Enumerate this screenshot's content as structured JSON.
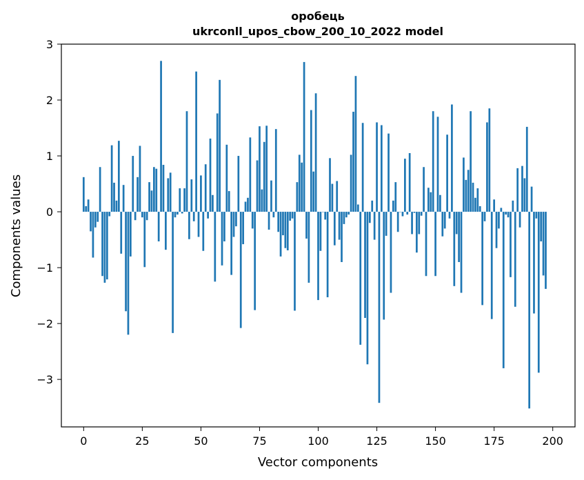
{
  "chart_data": {
    "type": "bar",
    "title_lines": [
      "оробець",
      "ukrconll_upos_cbow_200_10_2022 model"
    ],
    "xlabel": "Vector components",
    "ylabel": "Components values",
    "xlim": [
      -9.5,
      209.5
    ],
    "ylim": [
      -3.85,
      3.0
    ],
    "xticks": [
      0,
      25,
      50,
      75,
      100,
      125,
      150,
      175,
      200
    ],
    "xtick_labels": [
      "0",
      "25",
      "50",
      "75",
      "100",
      "125",
      "150",
      "175",
      "200"
    ],
    "yticks": [
      3,
      2,
      1,
      0,
      -1,
      -2,
      -3
    ],
    "ytick_labels": [
      "3",
      "2",
      "1",
      "0",
      "−1",
      "−2",
      "−3"
    ],
    "bar_color": "#1f77b4",
    "grid": false,
    "values": [
      0.62,
      0.1,
      0.22,
      -0.35,
      -0.82,
      -0.28,
      -0.18,
      0.8,
      -1.15,
      -1.27,
      -1.21,
      -0.08,
      1.19,
      0.52,
      0.2,
      1.27,
      -0.75,
      0.48,
      -1.78,
      -2.2,
      -0.8,
      1.0,
      -0.15,
      0.62,
      1.18,
      -0.1,
      -0.99,
      -0.15,
      0.53,
      0.38,
      0.8,
      0.77,
      -0.53,
      2.7,
      0.84,
      -0.68,
      0.6,
      0.7,
      -2.17,
      -0.1,
      -0.05,
      0.42,
      -0.03,
      0.42,
      1.8,
      -0.49,
      0.58,
      -0.17,
      2.51,
      -0.45,
      0.65,
      -0.7,
      0.85,
      -0.12,
      1.31,
      0.3,
      -1.25,
      1.76,
      2.36,
      -0.96,
      -0.53,
      1.2,
      0.37,
      -1.13,
      -0.45,
      -0.26,
      1.0,
      -2.08,
      -0.58,
      0.18,
      0.25,
      1.33,
      -0.3,
      -1.76,
      0.92,
      1.53,
      0.4,
      1.25,
      1.54,
      -0.32,
      0.56,
      -0.1,
      1.48,
      -0.36,
      -0.8,
      -0.42,
      -0.65,
      -0.69,
      -0.16,
      -0.12,
      -1.77,
      0.53,
      1.02,
      0.88,
      2.68,
      -0.48,
      -1.27,
      1.82,
      0.72,
      2.12,
      -1.58,
      -0.7,
      0.0,
      -0.14,
      -1.53,
      0.96,
      0.5,
      -0.6,
      0.55,
      -0.5,
      -0.9,
      -0.22,
      -0.1,
      -0.05,
      1.02,
      1.79,
      2.43,
      0.13,
      -2.38,
      1.59,
      -1.9,
      -2.73,
      -0.2,
      0.2,
      -0.5,
      1.6,
      -3.42,
      1.55,
      -1.93,
      -0.43,
      1.4,
      -1.45,
      0.2,
      0.53,
      -0.36,
      0.0,
      -0.08,
      0.95,
      -0.05,
      1.05,
      -0.4,
      -0.02,
      -0.73,
      -0.4,
      -0.07,
      0.8,
      -1.15,
      0.43,
      0.35,
      1.8,
      -1.15,
      1.7,
      0.3,
      -0.44,
      -0.3,
      1.38,
      -0.12,
      1.92,
      -1.33,
      -0.4,
      -0.9,
      -1.45,
      0.97,
      0.57,
      0.75,
      1.8,
      0.52,
      0.25,
      0.42,
      0.1,
      -1.67,
      -0.17,
      1.6,
      1.85,
      -1.92,
      0.22,
      -0.65,
      -0.3,
      0.07,
      -2.8,
      -0.05,
      -0.1,
      -1.17,
      0.2,
      -1.7,
      0.78,
      -0.28,
      0.82,
      0.6,
      1.52,
      -3.52,
      0.45,
      -1.82,
      -0.12,
      -2.88,
      -0.53,
      -1.14,
      -1.38
    ]
  }
}
